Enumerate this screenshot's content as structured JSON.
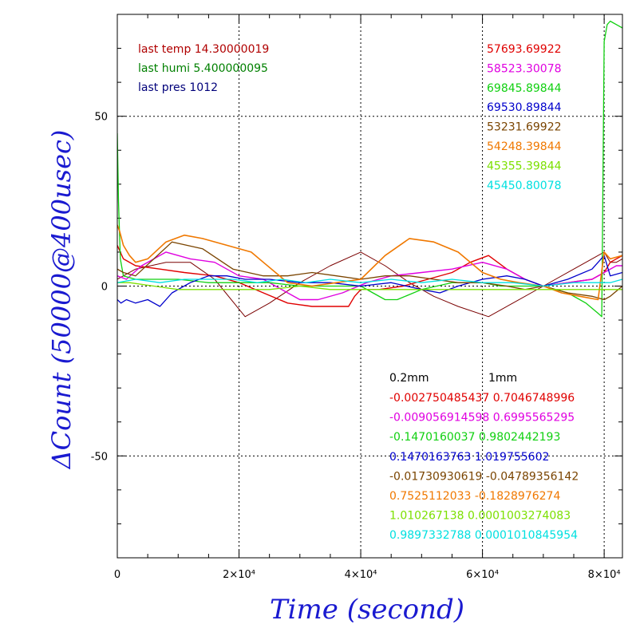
{
  "chart_data": {
    "type": "line",
    "xlabel": "Time (second)",
    "ylabel": "ΔCount (50000@400usec)",
    "xlim": [
      0,
      83000
    ],
    "ylim": [
      -80,
      80
    ],
    "grid": true,
    "x_ticks": [
      {
        "value": 0,
        "label": "0"
      },
      {
        "value": 20000,
        "label": "2×10⁴"
      },
      {
        "value": 40000,
        "label": "4×10⁴"
      },
      {
        "value": 60000,
        "label": "6×10⁴"
      },
      {
        "value": 80000,
        "label": "8×10⁴"
      }
    ],
    "y_ticks": [
      {
        "value": 50,
        "label": "50"
      },
      {
        "value": 0,
        "label": "0"
      },
      {
        "value": -50,
        "label": "-50"
      }
    ],
    "weather": [
      {
        "text": "last temp 14.30000019",
        "color": "#b00000"
      },
      {
        "text": "last humi 5.400000095",
        "color": "#008000"
      },
      {
        "text": "last pres 1012",
        "color": "#00007a"
      }
    ],
    "series_values": [
      {
        "text": "57693.69922",
        "color": "#e00000"
      },
      {
        "text": "58523.30078",
        "color": "#e000e0"
      },
      {
        "text": "69845.89844",
        "color": "#10d010"
      },
      {
        "text": "69530.89844",
        "color": "#0000cc"
      },
      {
        "text": "53231.69922",
        "color": "#7a4400"
      },
      {
        "text": "54248.39844",
        "color": "#f07800"
      },
      {
        "text": "45355.39844",
        "color": "#7ce000"
      },
      {
        "text": "45450.80078",
        "color": "#00e0e0"
      }
    ],
    "coef_header": {
      "a": "0.2mm",
      "b": "1mm"
    },
    "coefficients": [
      {
        "text": "-0.002750485437 0.7046748996",
        "color": "#e00000"
      },
      {
        "text": "-0.009056914598 0.6995565295",
        "color": "#e000e0"
      },
      {
        "text": "-0.1470160037 0.9802442193",
        "color": "#10d010"
      },
      {
        "text": "0.1470163763 1.019755602",
        "color": "#0000cc"
      },
      {
        "text": "-0.01730930619 -0.04789356142",
        "color": "#7a4400"
      },
      {
        "text": "0.7525112033 -0.1828976274",
        "color": "#f07800"
      },
      {
        "text": "1.010267138 0.0001003274083",
        "color": "#7ce000"
      },
      {
        "text": "0.9897332788 0.0001010845954",
        "color": "#00e0e0"
      }
    ],
    "series": [
      {
        "color": "#7a0000",
        "width": 1.0,
        "x": [
          0,
          1000,
          3000,
          8000,
          12000,
          16000,
          21000,
          25000,
          30000,
          35000,
          40000,
          44000,
          48000,
          52000,
          56000,
          61000,
          65000,
          70000,
          75000,
          80000,
          81000,
          82000,
          83000
        ],
        "y": [
          2,
          3,
          5,
          7,
          7,
          2,
          -9,
          -5,
          1,
          6,
          10,
          6,
          1,
          -3,
          -6,
          -9,
          -5,
          0,
          5,
          10,
          7,
          7,
          8
        ]
      },
      {
        "color": "#e00000",
        "width": 1.4,
        "x": [
          0,
          1000,
          3000,
          7000,
          11000,
          16000,
          20000,
          24000,
          28000,
          32000,
          36000,
          38000,
          39000,
          40000,
          43000,
          47000,
          51000,
          55000,
          58000,
          61000,
          64000,
          67000,
          70000,
          74000,
          78000,
          80000,
          81000,
          83000
        ],
        "y": [
          12,
          8,
          6,
          5,
          4,
          3,
          1,
          -2,
          -5,
          -6,
          -6,
          -6,
          -3,
          -1,
          -1,
          0,
          2,
          4,
          7,
          9,
          5,
          2,
          0,
          1,
          2,
          4,
          7,
          9
        ]
      },
      {
        "color": "#e000e0",
        "width": 1.4,
        "x": [
          0,
          1500,
          4000,
          8000,
          12000,
          16000,
          20000,
          24000,
          28000,
          30000,
          33000,
          37000,
          41000,
          45000,
          50000,
          55000,
          60000,
          64000,
          67000,
          70000,
          74000,
          78000,
          80000,
          82000,
          83000
        ],
        "y": [
          3,
          2,
          6,
          10,
          8,
          7,
          3,
          2,
          -2,
          -4,
          -4,
          -2,
          1,
          3,
          4,
          5,
          7,
          5,
          2,
          0,
          1,
          2,
          4,
          6,
          6
        ]
      },
      {
        "color": "#10d010",
        "width": 1.3,
        "x": [
          0,
          200,
          500,
          1000,
          3000,
          6000,
          10000,
          15000,
          20000,
          25000,
          30000,
          35000,
          40000,
          42000,
          44000,
          46000,
          50000,
          55000,
          60000,
          63000,
          66000,
          70000,
          74000,
          77000,
          79000,
          79600,
          80000,
          80500,
          81000,
          82000,
          83000
        ],
        "y": [
          45,
          25,
          8,
          3,
          2,
          2,
          2,
          1,
          1,
          1,
          0,
          0,
          0,
          -2,
          -4,
          -4,
          -1,
          1,
          1,
          0,
          0,
          0,
          -2,
          -5,
          -8,
          -9,
          72,
          77,
          78,
          77,
          76
        ]
      },
      {
        "color": "#0000cc",
        "width": 1.3,
        "x": [
          0,
          600,
          1500,
          3000,
          5000,
          7000,
          9000,
          12000,
          15000,
          18000,
          21000,
          25000,
          30000,
          35000,
          40000,
          45000,
          50000,
          53000,
          56000,
          60000,
          64000,
          67000,
          70000,
          74000,
          78000,
          80000,
          81000,
          83000
        ],
        "y": [
          -4,
          -5,
          -4,
          -5,
          -4,
          -6,
          -2,
          1,
          3,
          3,
          2,
          2,
          1,
          1,
          0,
          1,
          -1,
          -2,
          0,
          2,
          3,
          2,
          0,
          2,
          5,
          9,
          3,
          4
        ]
      },
      {
        "color": "#7a4400",
        "width": 1.3,
        "x": [
          0,
          1000,
          3000,
          6000,
          9000,
          14000,
          19000,
          24000,
          28000,
          32000,
          36000,
          40000,
          44000,
          48000,
          52000,
          56000,
          60000,
          64000,
          67000,
          70000,
          74000,
          78000,
          80000,
          81000,
          83000
        ],
        "y": [
          5,
          4,
          3,
          8,
          13,
          11,
          5,
          3,
          3,
          4,
          3,
          2,
          3,
          3,
          2,
          1,
          1,
          0,
          -1,
          0,
          -2,
          -3,
          -4,
          -3,
          0
        ]
      },
      {
        "color": "#f07800",
        "width": 1.6,
        "x": [
          0,
          400,
          1000,
          2000,
          3000,
          5000,
          8000,
          11000,
          14000,
          18000,
          22000,
          24000,
          26000,
          28000,
          32000,
          36000,
          40000,
          44000,
          48000,
          52000,
          56000,
          60000,
          63000,
          66000,
          70000,
          73000,
          76000,
          79000,
          80000,
          81000,
          83000
        ],
        "y": [
          18,
          16,
          12,
          9,
          7,
          8,
          13,
          15,
          14,
          12,
          10,
          7,
          4,
          1,
          0,
          1,
          2,
          9,
          14,
          13,
          10,
          4,
          2,
          1,
          0,
          -2,
          -3,
          -4,
          10,
          8,
          9
        ]
      },
      {
        "color": "#7ce000",
        "width": 1.3,
        "x": [
          0,
          2000,
          6000,
          10000,
          15000,
          20000,
          25000,
          30000,
          35000,
          40000,
          45000,
          50000,
          55000,
          60000,
          65000,
          70000,
          75000,
          80000,
          81000,
          83000
        ],
        "y": [
          1,
          1,
          0,
          -1,
          -1,
          -1,
          -1,
          0,
          -1,
          -1,
          -1,
          -1,
          -1,
          -1,
          -1,
          -1,
          -1,
          -1,
          -1,
          -1
        ]
      },
      {
        "color": "#00e0e0",
        "width": 1.3,
        "x": [
          0,
          3000,
          7000,
          11000,
          15000,
          19000,
          23000,
          27000,
          31000,
          35000,
          40000,
          45000,
          50000,
          55000,
          60000,
          65000,
          70000,
          75000,
          80000,
          81000,
          83000
        ],
        "y": [
          1,
          2,
          1,
          2,
          2,
          2,
          1,
          2,
          1,
          2,
          1,
          2,
          1,
          2,
          1,
          1,
          0,
          1,
          1,
          1,
          2
        ]
      }
    ]
  }
}
